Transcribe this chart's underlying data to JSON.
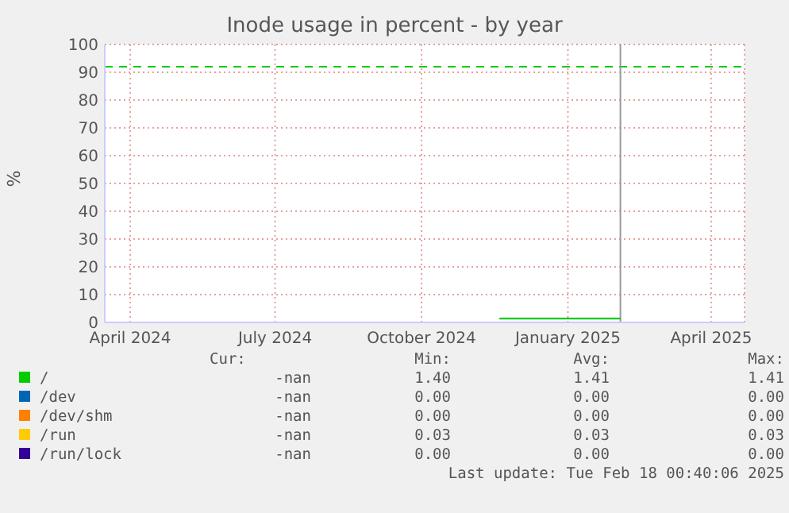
{
  "chart_data": {
    "type": "line",
    "title": "Inode usage in percent - by year",
    "ylabel": "%",
    "x": [
      "2024-12-04",
      "2025-02-18"
    ],
    "series": [
      {
        "name": "/",
        "color": "#00cc00",
        "values": [
          1.4,
          1.4
        ]
      },
      {
        "name": "/dev",
        "color": "#0066b3",
        "values": [
          null,
          null
        ]
      },
      {
        "name": "/dev/shm",
        "color": "#ff8000",
        "values": [
          null,
          null
        ]
      },
      {
        "name": "/run",
        "color": "#ffcc00",
        "values": [
          null,
          null
        ]
      },
      {
        "name": "/run/lock",
        "color": "#330099",
        "values": [
          null,
          null
        ]
      }
    ],
    "xlim": [
      "2024-03-31",
      "2025-05-07"
    ],
    "xticks": [
      {
        "value": "2024-04-16",
        "label": "April 2024"
      },
      {
        "value": "2024-07-16",
        "label": "July 2024"
      },
      {
        "value": "2024-10-16",
        "label": "October 2024"
      },
      {
        "value": "2025-01-16",
        "label": "January 2025"
      },
      {
        "value": "2025-04-16",
        "label": "April 2025"
      }
    ],
    "ylim": [
      0,
      100
    ],
    "yticks": [
      0,
      10,
      20,
      30,
      40,
      50,
      60,
      70,
      80,
      90,
      100
    ],
    "ref_lines": [
      {
        "axis": "y",
        "value": 92,
        "color": "#00cc00",
        "line_style": "dashed"
      },
      {
        "axis": "x",
        "value": "2025-02-18",
        "color": "#999999",
        "line_style": "solid"
      }
    ],
    "grid": true,
    "legend": "bottom",
    "marker": "none",
    "line_style": "solid",
    "annotations": [
      "Cur:",
      "Min:",
      "Avg:",
      "Max:",
      "-nan",
      "1.40",
      "1.41",
      "1.41",
      "-nan",
      "0.00",
      "0.00",
      "0.00",
      "-nan",
      "0.00",
      "0.00",
      "0.00",
      "-nan",
      "0.03",
      "0.03",
      "0.03",
      "-nan",
      "0.00",
      "0.00",
      "0.00",
      "Last update: Tue Feb 18 00:40:06 2025"
    ]
  }
}
